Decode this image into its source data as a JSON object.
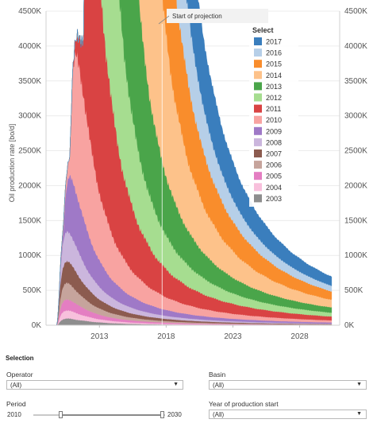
{
  "chart_data": {
    "type": "area",
    "ylabel": "Oil production rate [bo/d]",
    "xlabel": "",
    "x_ticks": [
      "2013",
      "2018",
      "2023",
      "2028"
    ],
    "x_range": [
      2009.0,
      2031.0
    ],
    "ylim": [
      0,
      4500000
    ],
    "y_ticks": [
      "0K",
      "500K",
      "1000K",
      "1500K",
      "2000K",
      "2500K",
      "3000K",
      "3500K",
      "4000K",
      "4500K"
    ],
    "grid": true,
    "legend_position": "top-right",
    "legend_title": "Select",
    "annotation": {
      "text": "Start of projection",
      "x": 2017.7
    },
    "series": [
      {
        "name": "2017",
        "color": "#3a7ebd",
        "start": 2017.4,
        "peak_x": 2017.7,
        "peak": 560000,
        "end": 130000
      },
      {
        "name": "2016",
        "color": "#b6cfe8",
        "start": 2016.4,
        "peak_x": 2016.9,
        "peak": 780000,
        "end": 80000
      },
      {
        "name": "2015",
        "color": "#f98d2c",
        "start": 2015.3,
        "peak_x": 2015.9,
        "peak": 1000000,
        "end": 120000
      },
      {
        "name": "2014",
        "color": "#fdc28a",
        "start": 2014.2,
        "peak_x": 2015.5,
        "peak": 1450000,
        "end": 110000
      },
      {
        "name": "2013",
        "color": "#4aa54a",
        "start": 2013.2,
        "peak_x": 2013.9,
        "peak": 1150000,
        "end": 75000
      },
      {
        "name": "2012",
        "color": "#a6dd90",
        "start": 2012.0,
        "peak_x": 2012.8,
        "peak": 800000,
        "end": 55000
      },
      {
        "name": "2011",
        "color": "#d94343",
        "start": 2010.8,
        "peak_x": 2011.8,
        "peak": 740000,
        "end": 55000
      },
      {
        "name": "2010",
        "color": "#f8a3a1",
        "start": 2009.8,
        "peak_x": 2010.8,
        "peak": 290000,
        "end": 30000
      },
      {
        "name": "2009",
        "color": "#9f79c7",
        "start": 2009.8,
        "peak_x": 2010.3,
        "peak": 110000,
        "end": 15000
      },
      {
        "name": "2008",
        "color": "#cbb6dd",
        "start": 2009.8,
        "peak_x": 2010.0,
        "peak": 55000,
        "end": 8000
      },
      {
        "name": "2007",
        "color": "#8c5b4f",
        "start": 2009.8,
        "peak_x": 2009.9,
        "peak": 40000,
        "end": 6000
      },
      {
        "name": "2006",
        "color": "#c6a49c",
        "start": 2009.8,
        "peak_x": 2009.9,
        "peak": 30000,
        "end": 4000
      },
      {
        "name": "2005",
        "color": "#e47ec2",
        "start": 2009.8,
        "peak_x": 2009.9,
        "peak": 20000,
        "end": 3000
      },
      {
        "name": "2004",
        "color": "#f8c0dc",
        "start": 2009.8,
        "peak_x": 2009.9,
        "peak": 15000,
        "end": 2000
      },
      {
        "name": "2003",
        "color": "#8e8e8e",
        "start": 2009.8,
        "peak_x": 2009.9,
        "peak": 12000,
        "end": 2000
      }
    ]
  },
  "controls": {
    "section_title": "Selection",
    "operator": {
      "label": "Operator",
      "value": "(All)"
    },
    "basin": {
      "label": "Basin",
      "value": "(All)"
    },
    "period": {
      "label": "Period",
      "min": "2010",
      "max": "2030"
    },
    "year_start": {
      "label": "Year of production start",
      "value": "(All)"
    }
  }
}
